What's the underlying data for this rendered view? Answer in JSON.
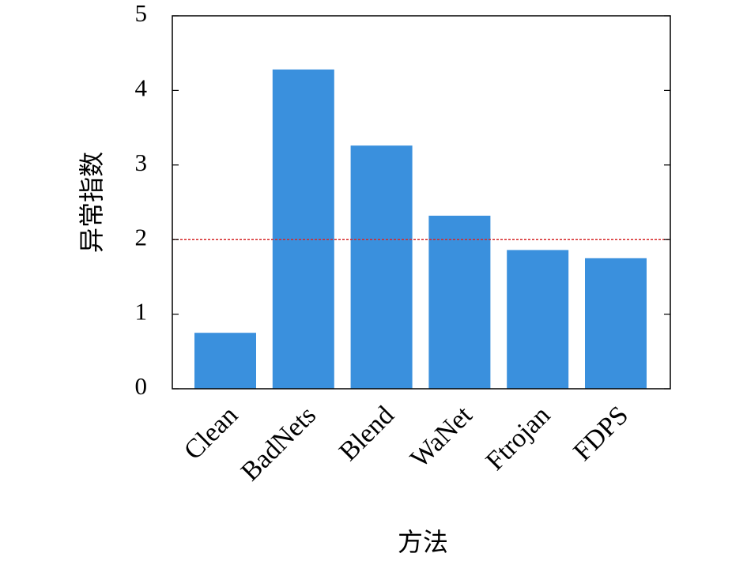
{
  "chart_data": {
    "type": "bar",
    "xlabel": "方法",
    "ylabel": "异常指数",
    "categories": [
      "Clean",
      "BadNets",
      "Blend",
      "WaNet",
      "Ftrojan",
      "FDPS"
    ],
    "values": [
      0.75,
      4.28,
      3.26,
      2.32,
      1.86,
      1.75
    ],
    "color": "#3a90dd",
    "ylim": [
      0,
      5
    ],
    "yticks": [
      0,
      1,
      2,
      3,
      4,
      5
    ],
    "threshold": 2,
    "threshold_color": "#d62728",
    "grid": false
  }
}
